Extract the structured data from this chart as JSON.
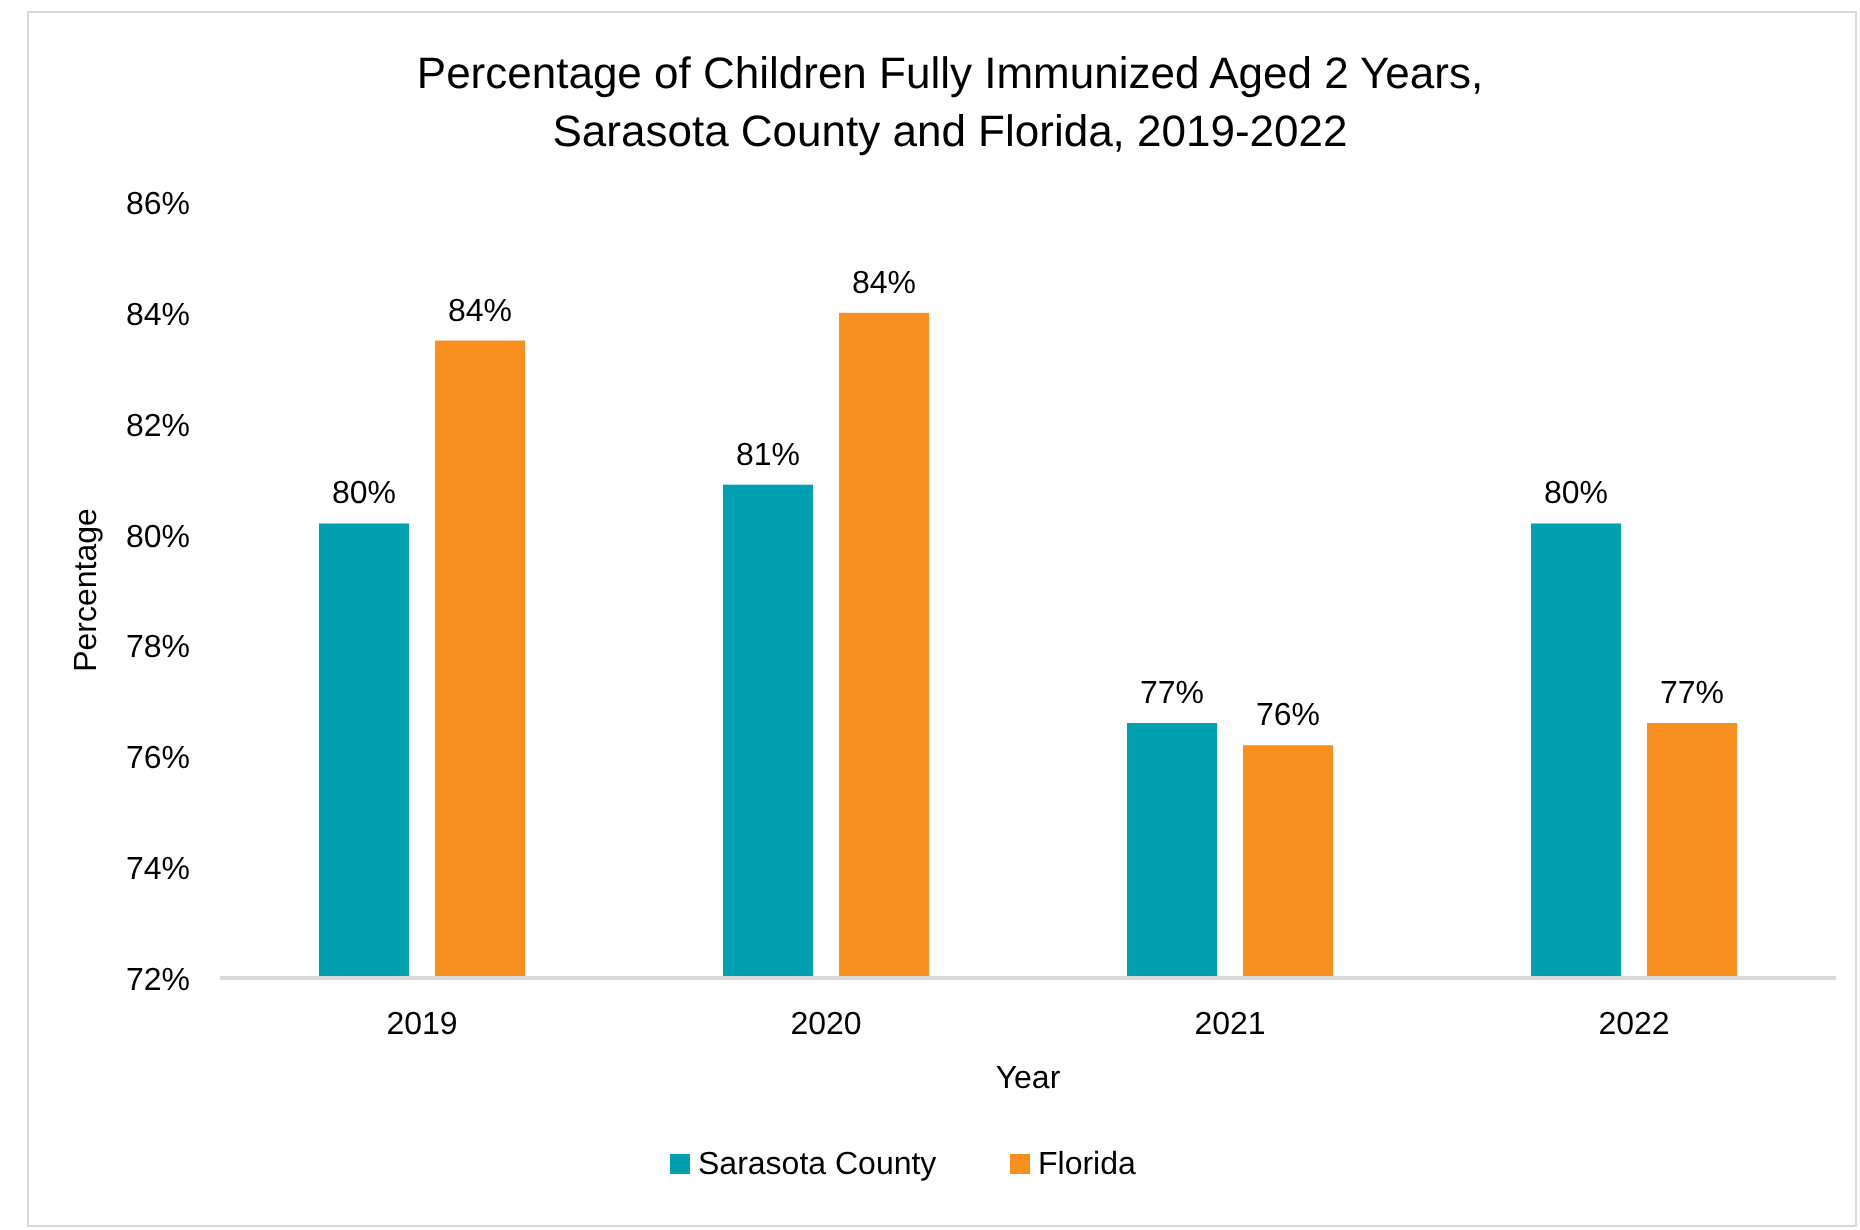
{
  "chart_data": {
    "type": "bar",
    "title": "Percentage of Children Fully Immunized Aged 2 Years,\nSarasota County and Florida, 2019-2022",
    "xlabel": "Year",
    "ylabel": "Percentage",
    "categories": [
      "2019",
      "2020",
      "2021",
      "2022"
    ],
    "series": [
      {
        "name": "Sarasota County",
        "color": "#00a0b0",
        "values": [
          80.2,
          80.9,
          76.6,
          80.2
        ],
        "value_labels": [
          "80%",
          "81%",
          "77%",
          "80%"
        ]
      },
      {
        "name": "Florida",
        "color": "#f7901e",
        "values": [
          83.5,
          84.0,
          76.2,
          76.6
        ],
        "value_labels": [
          "84%",
          "84%",
          "76%",
          "77%"
        ]
      }
    ],
    "ylim": [
      72,
      86
    ],
    "yticks": [
      {
        "value": 72,
        "label": "72%"
      },
      {
        "value": 74,
        "label": "74%"
      },
      {
        "value": 76,
        "label": "76%"
      },
      {
        "value": 78,
        "label": "78%"
      },
      {
        "value": 80,
        "label": "80%"
      },
      {
        "value": 82,
        "label": "82%"
      },
      {
        "value": 84,
        "label": "84%"
      },
      {
        "value": 86,
        "label": "86%"
      }
    ],
    "grid": false,
    "legend": "bottom"
  }
}
